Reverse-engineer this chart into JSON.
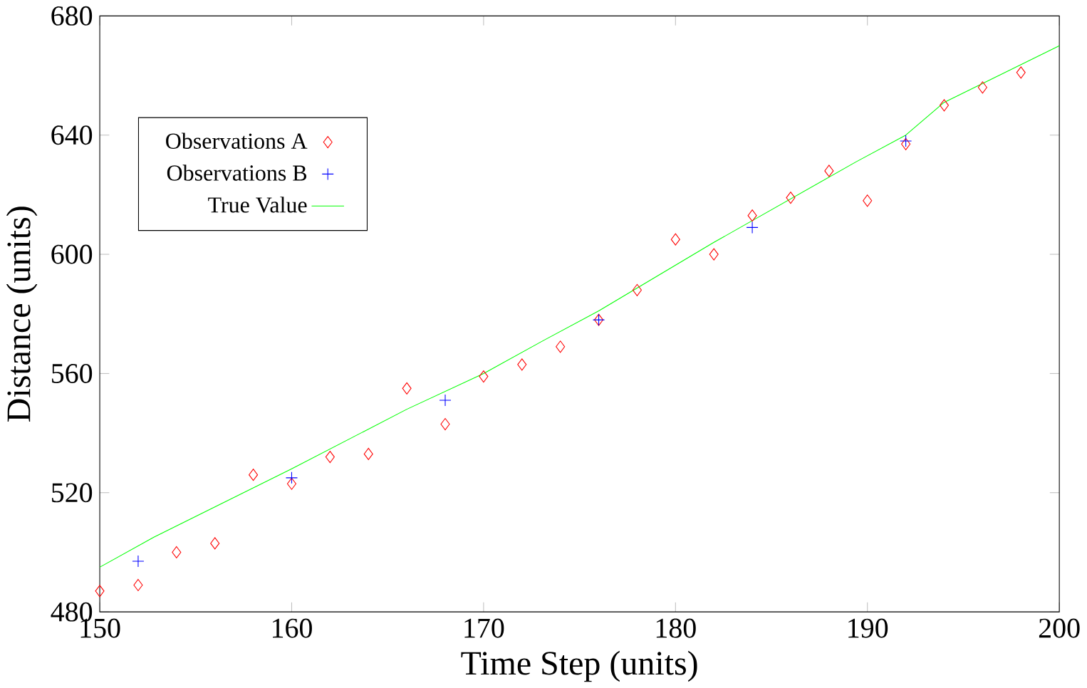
{
  "chart_data": {
    "type": "scatter",
    "xlabel": "Time Step (units)",
    "ylabel": "Distance (units)",
    "xlim": [
      150,
      200
    ],
    "ylim": [
      480,
      680
    ],
    "xticks": [
      150,
      160,
      170,
      180,
      190,
      200
    ],
    "yticks": [
      480,
      520,
      560,
      600,
      640,
      680
    ],
    "grid": false,
    "legend": "top left",
    "series": [
      {
        "name": "Observations A",
        "marker": "diamond",
        "color": "#ff0000",
        "x": [
          150,
          152,
          154,
          156,
          158,
          160,
          162,
          164,
          166,
          168,
          170,
          172,
          174,
          176,
          178,
          180,
          182,
          184,
          186,
          188,
          190,
          192,
          194,
          196,
          198
        ],
        "values": [
          487,
          489,
          500,
          503,
          526,
          523,
          532,
          533,
          555,
          543,
          559,
          563,
          569,
          578,
          588,
          605,
          600,
          613,
          619,
          628,
          618,
          637,
          650,
          656,
          661
        ]
      },
      {
        "name": "Observations B",
        "marker": "cross",
        "color": "#0000ff",
        "x": [
          152,
          160,
          168,
          176,
          184,
          192
        ],
        "values": [
          497,
          525,
          551,
          578,
          609,
          638
        ]
      },
      {
        "name": "True Value",
        "type": "line",
        "marker": "none",
        "line_style": "solid",
        "color": "#00ff00",
        "x": [
          150,
          152.8,
          160,
          166,
          170,
          173.1,
          176,
          182,
          189.4,
          192,
          194,
          200
        ],
        "values": [
          495,
          505,
          528,
          548,
          560,
          571,
          581,
          604,
          631,
          640,
          651,
          670
        ]
      }
    ]
  }
}
